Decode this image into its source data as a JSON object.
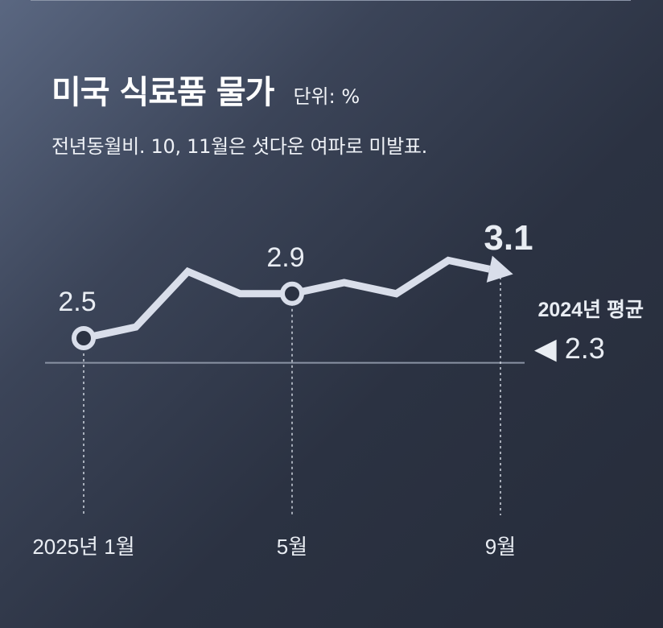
{
  "header": {
    "title": "미국 식료품 물가",
    "unit": "단위: %",
    "subtitle": "전년동월비. 10, 11월은 셧다운 여파로 미발표."
  },
  "chart_data": {
    "type": "line",
    "title": "미국 식료품 물가",
    "unit": "%",
    "x": [
      "2025-01",
      "2025-02",
      "2025-03",
      "2025-04",
      "2025-05",
      "2025-06",
      "2025-07",
      "2025-08",
      "2025-09"
    ],
    "series": [
      {
        "values": [
          2.5,
          2.6,
          3.1,
          2.9,
          2.9,
          3.0,
          2.9,
          3.2,
          3.1
        ]
      }
    ],
    "x_tick_labels": [
      {
        "x": "2025-01",
        "label": "2025년 1월"
      },
      {
        "x": "2025-05",
        "label": "5월"
      },
      {
        "x": "2025-09",
        "label": "9월"
      }
    ],
    "point_labels": [
      {
        "x": "2025-01",
        "label": "2.5",
        "marker": true
      },
      {
        "x": "2025-05",
        "label": "2.9",
        "marker": true
      },
      {
        "x": "2025-09",
        "label": "3.1",
        "emphasis": true
      }
    ],
    "reference_line": {
      "value": 2.3,
      "label": "2024년 평균",
      "value_label": "◀ 2.3"
    },
    "colors": {
      "line": "#d9deea",
      "marker_fill": "#2b3242",
      "reference": "#8a93a4",
      "guide": "#cfd5df"
    },
    "grid": false
  }
}
